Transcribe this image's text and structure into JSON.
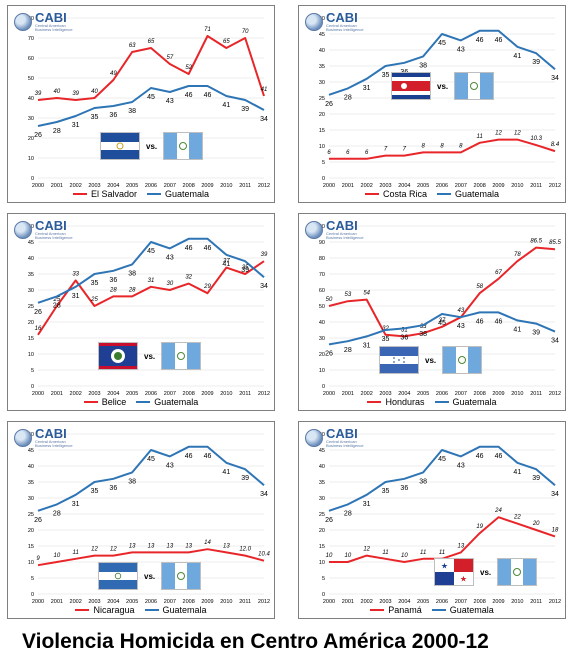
{
  "caption": "Violencia Homicida en Centro América 2000-12",
  "logo": {
    "name": "CABI",
    "sub1": "Central American",
    "sub2": "Business Intelligence"
  },
  "vs_label": "vs.",
  "colors": {
    "country": "#e8262a",
    "guatemala": "#2e75b6",
    "grid": "#d9d9d9"
  },
  "chart_data": [
    {
      "type": "line",
      "x": [
        "2000",
        "2001",
        "2002",
        "2003",
        "2004",
        "2005",
        "2006",
        "2007",
        "2008",
        "2009",
        "2010",
        "2011",
        "2012"
      ],
      "ylim": [
        0,
        80
      ],
      "yticks": [
        0,
        10,
        20,
        30,
        40,
        50,
        60,
        70,
        80
      ],
      "grid": true,
      "legend": "bottom",
      "series": [
        {
          "name": "El Salvador",
          "values": [
            39,
            40,
            39,
            40,
            49,
            63,
            65,
            57,
            52,
            71,
            65,
            70,
            41
          ],
          "labels": [
            "39",
            "40",
            "39",
            "40",
            "49",
            "63",
            "65",
            "57",
            "52",
            "71",
            "65",
            "70",
            "41"
          ]
        },
        {
          "name": "Guatemala",
          "values": [
            26,
            28,
            31,
            35,
            36,
            38,
            45,
            43,
            46,
            46,
            41,
            39,
            34
          ],
          "labels": [
            "26",
            "28",
            "31",
            "35",
            "36",
            "38",
            "45",
            "43",
            "46",
            "46",
            "41",
            "39",
            "34"
          ]
        }
      ],
      "flags": [
        "el-salvador-flag",
        "guatemala-flag"
      ]
    },
    {
      "type": "line",
      "x": [
        "2000",
        "2001",
        "2002",
        "2003",
        "2004",
        "2005",
        "2006",
        "2007",
        "2008",
        "2009",
        "2010",
        "2011",
        "2012"
      ],
      "ylim": [
        0,
        50
      ],
      "yticks": [
        0,
        5,
        10,
        15,
        20,
        25,
        30,
        35,
        40,
        45,
        50
      ],
      "grid": true,
      "legend": "bottom",
      "series": [
        {
          "name": "Costa Rica",
          "values": [
            6,
            6,
            6,
            7,
            7,
            8,
            8,
            8,
            11,
            12,
            12,
            10.3,
            8.4
          ],
          "labels": [
            "6",
            "6",
            "6",
            "7",
            "7",
            "8",
            "8",
            "8",
            "11",
            "12",
            "12",
            "10.3",
            "8.4"
          ]
        },
        {
          "name": "Guatemala",
          "values": [
            26,
            28,
            31,
            35,
            36,
            38,
            45,
            43,
            46,
            46,
            41,
            39,
            34
          ],
          "labels": [
            "26",
            "28",
            "31",
            "35",
            "36",
            "38",
            "45",
            "43",
            "46",
            "46",
            "41",
            "39",
            "34"
          ]
        }
      ],
      "flags": [
        "costa-rica-flag",
        "guatemala-flag"
      ]
    },
    {
      "type": "line",
      "x": [
        "2000",
        "2001",
        "2002",
        "2003",
        "2004",
        "2005",
        "2006",
        "2007",
        "2008",
        "2009",
        "2010",
        "2011",
        "2012"
      ],
      "ylim": [
        0,
        50
      ],
      "yticks": [
        0,
        5,
        10,
        15,
        20,
        25,
        30,
        35,
        40,
        45,
        50
      ],
      "grid": true,
      "legend": "bottom",
      "series": [
        {
          "name": "Belice",
          "values": [
            16,
            25,
            33,
            25,
            28,
            28,
            31,
            30,
            32,
            29,
            37,
            35,
            39
          ],
          "labels": [
            "16",
            "25",
            "33",
            "25",
            "28",
            "28",
            "31",
            "30",
            "32",
            "29",
            "37",
            "35",
            "39"
          ]
        },
        {
          "name": "Guatemala",
          "values": [
            26,
            28,
            31,
            35,
            36,
            38,
            45,
            43,
            46,
            46,
            41,
            39,
            34
          ],
          "labels": [
            "26",
            "28",
            "31",
            "35",
            "36",
            "38",
            "45",
            "43",
            "46",
            "46",
            "41",
            "39",
            "34"
          ]
        }
      ],
      "flags": [
        "belize-flag",
        "guatemala-flag"
      ]
    },
    {
      "type": "line",
      "x": [
        "2000",
        "2001",
        "2002",
        "2003",
        "2004",
        "2005",
        "2006",
        "2007",
        "2008",
        "2009",
        "2010",
        "2011",
        "2012"
      ],
      "ylim": [
        0,
        100
      ],
      "yticks": [
        0,
        10,
        20,
        30,
        40,
        50,
        60,
        70,
        80,
        90,
        100
      ],
      "grid": true,
      "legend": "bottom",
      "series": [
        {
          "name": "Honduras",
          "values": [
            50,
            53,
            54,
            32,
            31,
            33,
            37,
            43,
            58,
            67,
            78,
            86.5,
            85.5
          ],
          "labels": [
            "50",
            "53",
            "54",
            "32",
            "31",
            "33",
            "37",
            "43",
            "58",
            "67",
            "78",
            "86.5",
            "85.5"
          ]
        },
        {
          "name": "Guatemala",
          "values": [
            26,
            28,
            31,
            35,
            36,
            38,
            45,
            43,
            46,
            46,
            41,
            39,
            34
          ],
          "labels": [
            "26",
            "28",
            "31",
            "35",
            "36",
            "38",
            "45",
            "43",
            "46",
            "46",
            "41",
            "39",
            "34"
          ]
        }
      ],
      "flags": [
        "honduras-flag",
        "guatemala-flag"
      ]
    },
    {
      "type": "line",
      "x": [
        "2000",
        "2001",
        "2002",
        "2003",
        "2004",
        "2005",
        "2006",
        "2007",
        "2008",
        "2009",
        "2010",
        "2011",
        "2012"
      ],
      "ylim": [
        0,
        50
      ],
      "yticks": [
        0,
        5,
        10,
        15,
        20,
        25,
        30,
        35,
        40,
        45,
        50
      ],
      "grid": true,
      "legend": "bottom",
      "series": [
        {
          "name": "Nicaragua",
          "values": [
            9,
            10,
            11,
            12,
            12,
            13,
            13,
            13,
            13,
            14,
            13,
            12.0,
            10.4
          ],
          "labels": [
            "9",
            "10",
            "11",
            "12",
            "12",
            "13",
            "13",
            "13",
            "13",
            "14",
            "13",
            "12.0",
            "10.4"
          ]
        },
        {
          "name": "Guatemala",
          "values": [
            26,
            28,
            31,
            35,
            36,
            38,
            45,
            43,
            46,
            46,
            41,
            39,
            34
          ],
          "labels": [
            "26",
            "28",
            "31",
            "35",
            "36",
            "38",
            "45",
            "43",
            "46",
            "46",
            "41",
            "39",
            "34"
          ]
        }
      ],
      "flags": [
        "nicaragua-flag",
        "guatemala-flag"
      ]
    },
    {
      "type": "line",
      "x": [
        "2000",
        "2001",
        "2002",
        "2003",
        "2004",
        "2005",
        "2006",
        "2007",
        "2008",
        "2009",
        "2010",
        "2011",
        "2012"
      ],
      "ylim": [
        0,
        50
      ],
      "yticks": [
        0,
        5,
        10,
        15,
        20,
        25,
        30,
        35,
        40,
        45,
        50
      ],
      "grid": true,
      "legend": "bottom",
      "series": [
        {
          "name": "Panamá",
          "values": [
            10,
            10,
            12,
            11,
            10,
            11,
            11,
            13,
            19,
            24,
            22,
            20,
            18
          ],
          "labels": [
            "10",
            "10",
            "12",
            "11",
            "10",
            "11",
            "11",
            "13",
            "19",
            "24",
            "22",
            "20",
            "18"
          ]
        },
        {
          "name": "Guatemala",
          "values": [
            26,
            28,
            31,
            35,
            36,
            38,
            45,
            43,
            46,
            46,
            41,
            39,
            34
          ],
          "labels": [
            "26",
            "28",
            "31",
            "35",
            "36",
            "38",
            "45",
            "43",
            "46",
            "46",
            "41",
            "39",
            "34"
          ]
        }
      ],
      "flags": [
        "panama-flag",
        "guatemala-flag"
      ]
    }
  ]
}
